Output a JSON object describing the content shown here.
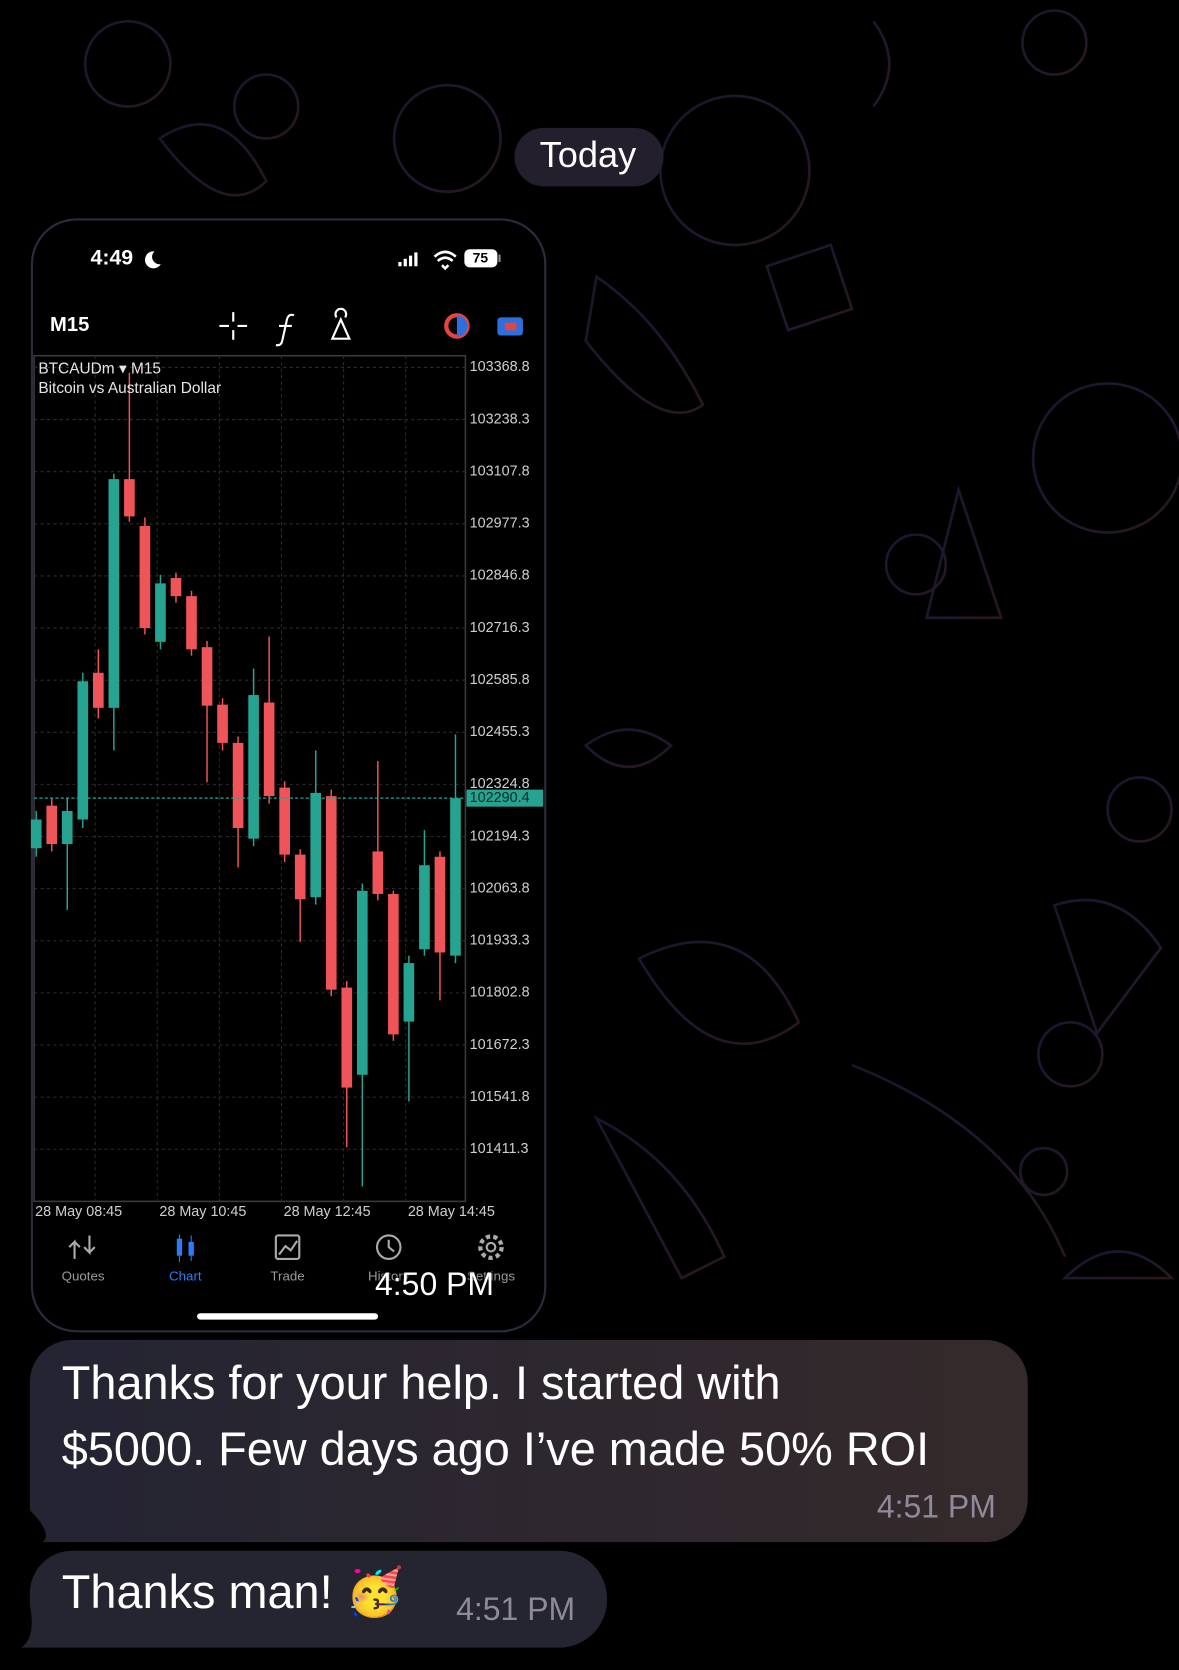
{
  "date_badge": "Today",
  "messages": [
    {
      "time": "4:50 PM",
      "screenshot": {
        "status_bar": {
          "time": "4:49",
          "battery": "75"
        },
        "toolbar": {
          "timeframe": "M15"
        },
        "chart": {
          "type": "candlestick",
          "title": "BTCAUDm ▾ M15",
          "subtitle": "Bitcoin vs Australian Dollar",
          "up_color": "#26a391",
          "down_color": "#ef5458",
          "ylim": [
            101280.8,
            103398.1
          ],
          "yticks": [
            103368.8,
            103238.3,
            103107.8,
            102977.3,
            102846.8,
            102716.3,
            102585.8,
            102455.3,
            102324.8,
            102194.3,
            102063.8,
            101933.3,
            101802.8,
            101672.3,
            101541.8,
            101411.3
          ],
          "current_price": 102290.4,
          "x_labels": [
            "28 May 08:45",
            "28 May 10:45",
            "28 May 12:45",
            "28 May 14:45"
          ],
          "candles": [
            {
              "open": 102165.0,
              "high": 102258.2,
              "low": 102143.7,
              "close": 102236.9
            },
            {
              "open": 102271.5,
              "high": 102290.2,
              "low": 102157.0,
              "close": 102175.6
            },
            {
              "open": 102175.6,
              "high": 102290.2,
              "low": 102010.5,
              "close": 102258.2
            },
            {
              "open": 102236.9,
              "high": 102604.4,
              "low": 102215.6,
              "close": 102583.1
            },
            {
              "open": 102604.4,
              "high": 102663.0,
              "low": 102489.9,
              "close": 102516.5
            },
            {
              "open": 102516.5,
              "high": 103102.5,
              "low": 102410.0,
              "close": 103089.2
            },
            {
              "open": 103089.2,
              "high": 103355.5,
              "low": 102982.6,
              "close": 102995.9
            },
            {
              "open": 102972.0,
              "high": 102993.3,
              "low": 102700.3,
              "close": 102716.3
            },
            {
              "open": 102681.7,
              "high": 102849.5,
              "low": 102663.0,
              "close": 102828.2
            },
            {
              "open": 102841.5,
              "high": 102854.8,
              "low": 102780.2,
              "close": 102796.2
            },
            {
              "open": 102796.2,
              "high": 102809.5,
              "low": 102647.1,
              "close": 102663.0
            },
            {
              "open": 102668.4,
              "high": 102684.3,
              "low": 102330.1,
              "close": 102521.9
            },
            {
              "open": 102524.5,
              "high": 102540.5,
              "low": 102410.0,
              "close": 102428.7
            },
            {
              "open": 102428.7,
              "high": 102444.6,
              "low": 102117.0,
              "close": 102215.6
            },
            {
              "open": 102189.0,
              "high": 102615.1,
              "low": 102170.3,
              "close": 102548.5
            },
            {
              "open": 102529.9,
              "high": 102695.0,
              "low": 102276.8,
              "close": 102295.5
            },
            {
              "open": 102316.8,
              "high": 102332.8,
              "low": 102130.4,
              "close": 102149.0
            },
            {
              "open": 102149.0,
              "high": 102162.3,
              "low": 101930.6,
              "close": 102037.1
            },
            {
              "open": 102042.5,
              "high": 102410.0,
              "low": 102023.8,
              "close": 102303.5
            },
            {
              "open": 102295.5,
              "high": 102311.5,
              "low": 101794.8,
              "close": 101810.8
            },
            {
              "open": 101816.1,
              "high": 101832.1,
              "low": 101416.6,
              "close": 101565.7
            },
            {
              "open": 101597.7,
              "high": 102077.1,
              "low": 101318.1,
              "close": 102058.5
            },
            {
              "open": 102157.0,
              "high": 102383.4,
              "low": 102034.5,
              "close": 102050.5
            },
            {
              "open": 102050.5,
              "high": 102058.5,
              "low": 101682.9,
              "close": 101698.9
            },
            {
              "open": 101730.9,
              "high": 101896.0,
              "low": 101531.1,
              "close": 101877.4
            },
            {
              "open": 101912.0,
              "high": 102210.3,
              "low": 101896.0,
              "close": 102122.4
            },
            {
              "open": 102143.7,
              "high": 102157.0,
              "low": 101784.1,
              "close": 101904.0
            },
            {
              "open": 101896.0,
              "high": 102450.0,
              "low": 101877.4,
              "close": 102290.4
            }
          ]
        },
        "nav": {
          "tabs": [
            "Quotes",
            "Chart",
            "Trade",
            "History",
            "Settings"
          ],
          "active_tab": 1
        }
      }
    },
    {
      "lines": [
        "Thanks for your help. I started with",
        "$5000. Few days ago I’ve made 50% ROI"
      ],
      "time": "4:51 PM"
    },
    {
      "lines": [
        "Thanks man! 🥳"
      ],
      "time": "4:51 PM"
    }
  ]
}
